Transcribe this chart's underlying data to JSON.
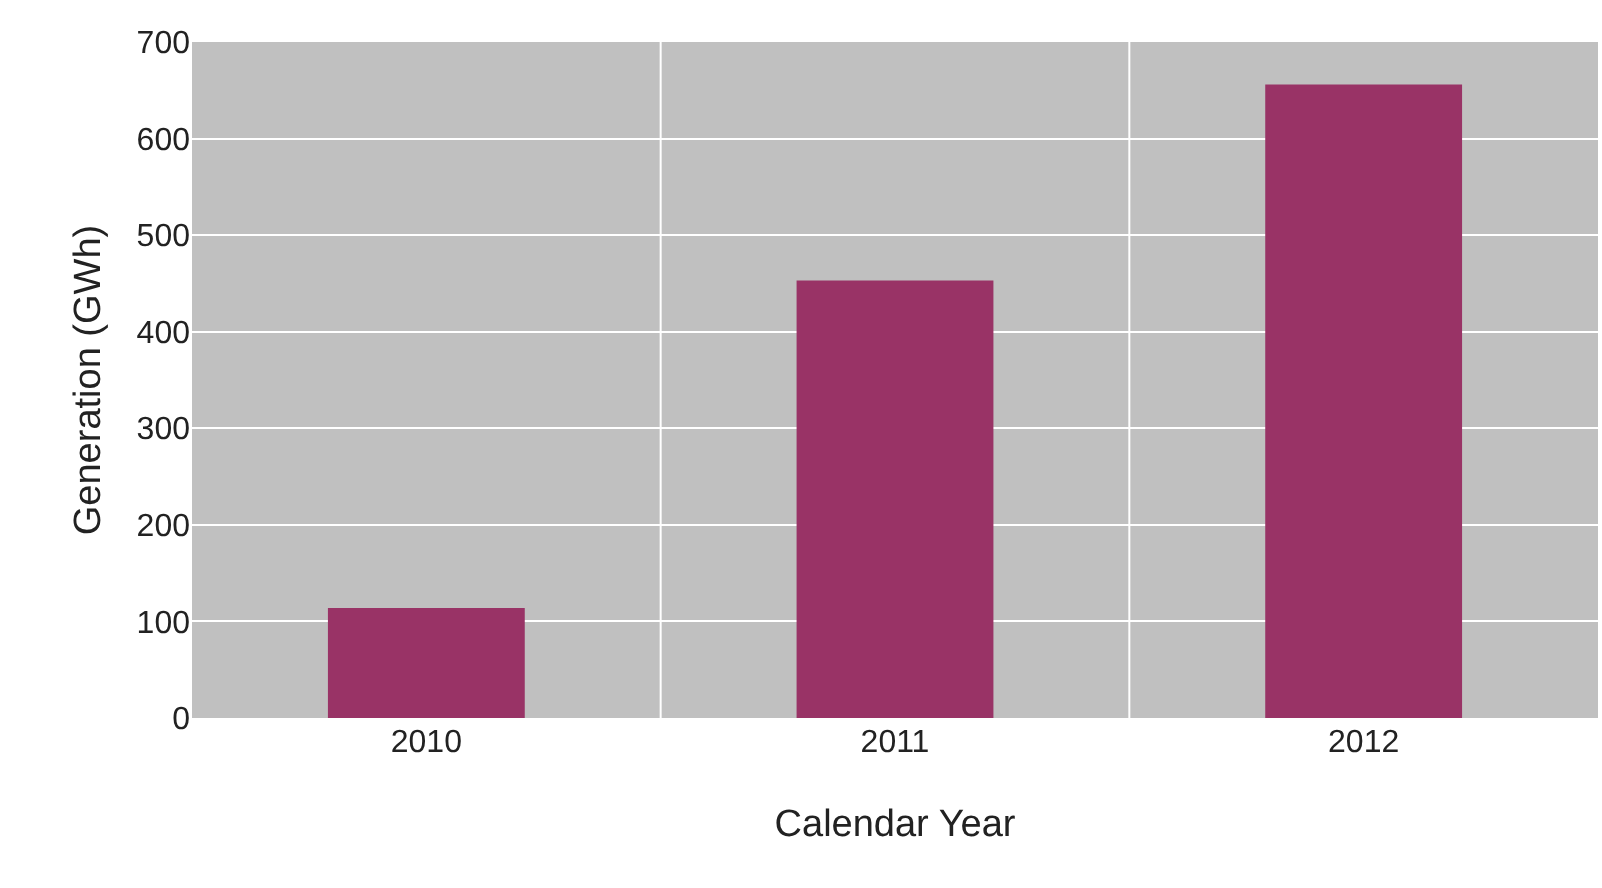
{
  "chart_data": {
    "type": "bar",
    "xlabel": "Calendar Year",
    "ylabel": "Generation (GWh)",
    "categories": [
      "2010",
      "2011",
      "2012"
    ],
    "values": [
      114,
      453,
      656
    ],
    "color": "#993366",
    "ylim": [
      0,
      700
    ],
    "yticks": [
      0,
      100,
      200,
      300,
      400,
      500,
      600,
      700
    ],
    "grid": true
  }
}
